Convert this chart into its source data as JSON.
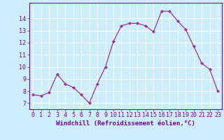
{
  "x": [
    0,
    1,
    2,
    3,
    4,
    5,
    6,
    7,
    8,
    9,
    10,
    11,
    12,
    13,
    14,
    15,
    16,
    17,
    18,
    19,
    20,
    21,
    22,
    23
  ],
  "y": [
    7.7,
    7.6,
    7.9,
    9.4,
    8.6,
    8.3,
    7.7,
    7.0,
    8.6,
    10.0,
    12.1,
    13.4,
    13.6,
    13.6,
    13.4,
    12.9,
    14.6,
    14.6,
    13.8,
    13.1,
    11.7,
    10.3,
    9.8,
    8.0
  ],
  "line_color": "#993399",
  "marker": "D",
  "marker_size": 2.0,
  "bg_color": "#cceeff",
  "grid_color": "#ffffff",
  "xlabel": "Windchill (Refroidissement éolien,°C)",
  "xlabel_color": "#7700aa",
  "tick_color": "#7700aa",
  "ylabel_ticks": [
    7,
    8,
    9,
    10,
    11,
    12,
    13,
    14
  ],
  "xlim": [
    -0.5,
    23.5
  ],
  "ylim": [
    6.5,
    15.3
  ],
  "label_fontsize": 6.5,
  "tick_fontsize": 6.0
}
